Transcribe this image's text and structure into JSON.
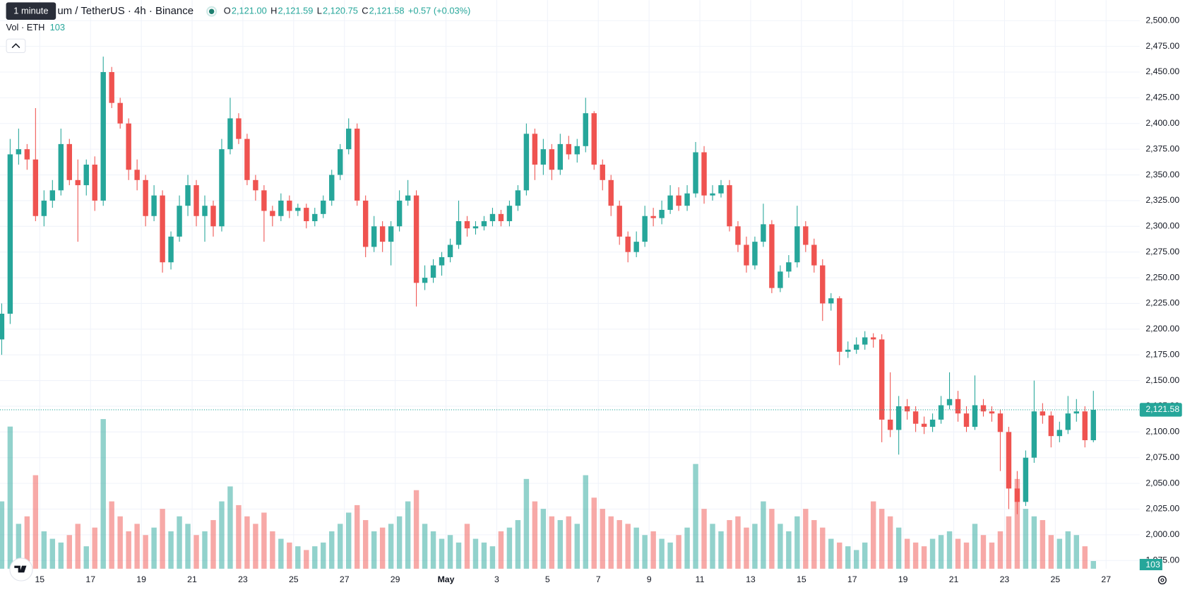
{
  "chart_data": {
    "type": "candlestick",
    "tooltip": "1 minute",
    "title": "um / TetherUS · 4h · Binance",
    "header_values": [
      {
        "key": "O",
        "text": "2,121.00"
      },
      {
        "key": "H",
        "text": "2,121.59"
      },
      {
        "key": "L",
        "text": "2,120.75"
      },
      {
        "key": "C",
        "text": "2,121.58"
      }
    ],
    "change": "+0.57 (+0.03%)",
    "volume_title": "Vol · ETH",
    "up_color": "#26a69a",
    "down_color": "#ef5350",
    "grid": true,
    "xlim": [
      -0.2,
      134.2
    ],
    "ylim": [
      1967,
      2520
    ],
    "volume_ylim": [
      0,
      7600
    ],
    "xticks": [
      {
        "value": 4.5,
        "label": "15"
      },
      {
        "value": 10.5,
        "label": "17"
      },
      {
        "value": 16.5,
        "label": "19"
      },
      {
        "value": 22.5,
        "label": "21"
      },
      {
        "value": 28.5,
        "label": "23"
      },
      {
        "value": 34.5,
        "label": "25"
      },
      {
        "value": 40.5,
        "label": "27"
      },
      {
        "value": 46.5,
        "label": "29"
      },
      {
        "value": 52.5,
        "label": "May"
      },
      {
        "value": 58.5,
        "label": "3"
      },
      {
        "value": 64.5,
        "label": "5"
      },
      {
        "value": 70.5,
        "label": "7"
      },
      {
        "value": 76.5,
        "label": "9"
      },
      {
        "value": 82.5,
        "label": "11"
      },
      {
        "value": 88.5,
        "label": "13"
      },
      {
        "value": 94.5,
        "label": "15"
      },
      {
        "value": 100.5,
        "label": "17"
      },
      {
        "value": 106.5,
        "label": "19"
      },
      {
        "value": 112.5,
        "label": "21"
      },
      {
        "value": 118.5,
        "label": "23"
      },
      {
        "value": 124.5,
        "label": "25"
      },
      {
        "value": 130.5,
        "label": "27"
      }
    ],
    "yticks": [
      {
        "value": 1975,
        "label": "1,975.00"
      },
      {
        "value": 2000,
        "label": "2,000.00"
      },
      {
        "value": 2025,
        "label": "2,025.00"
      },
      {
        "value": 2050,
        "label": "2,050.00"
      },
      {
        "value": 2075,
        "label": "2,075.00"
      },
      {
        "value": 2100,
        "label": "2,100.00"
      },
      {
        "value": 2125,
        "label": "2,125.00"
      },
      {
        "value": 2150,
        "label": "2,150.00"
      },
      {
        "value": 2175,
        "label": "2,175.00"
      },
      {
        "value": 2200,
        "label": "2,200.00"
      },
      {
        "value": 2225,
        "label": "2,225.00"
      },
      {
        "value": 2250,
        "label": "2,250.00"
      },
      {
        "value": 2275,
        "label": "2,275.00"
      },
      {
        "value": 2300,
        "label": "2,300.00"
      },
      {
        "value": 2325,
        "label": "2,325.00"
      },
      {
        "value": 2350,
        "label": "2,350.00"
      },
      {
        "value": 2375,
        "label": "2,375.00"
      },
      {
        "value": 2400,
        "label": "2,400.00"
      },
      {
        "value": 2425,
        "label": "2,425.00"
      },
      {
        "value": 2450,
        "label": "2,450.00"
      },
      {
        "value": 2475,
        "label": "2,475.00"
      },
      {
        "value": 2500,
        "label": "2,500.00"
      }
    ],
    "last_price": {
      "value": 2121.58,
      "label": "2,121.58"
    },
    "candles": [
      [
        2190,
        2225,
        2175,
        2215
      ],
      [
        2215,
        2385,
        2205,
        2370
      ],
      [
        2370,
        2395,
        2360,
        2375
      ],
      [
        2375,
        2380,
        2355,
        2365
      ],
      [
        2365,
        2415,
        2305,
        2310
      ],
      [
        2310,
        2335,
        2300,
        2325
      ],
      [
        2325,
        2345,
        2318,
        2335
      ],
      [
        2335,
        2395,
        2330,
        2380
      ],
      [
        2380,
        2385,
        2340,
        2345
      ],
      [
        2345,
        2365,
        2285,
        2340
      ],
      [
        2340,
        2365,
        2330,
        2360
      ],
      [
        2360,
        2368,
        2315,
        2325
      ],
      [
        2325,
        2465,
        2320,
        2450
      ],
      [
        2450,
        2455,
        2415,
        2420
      ],
      [
        2420,
        2425,
        2395,
        2400
      ],
      [
        2400,
        2405,
        2345,
        2355
      ],
      [
        2355,
        2365,
        2335,
        2345
      ],
      [
        2345,
        2350,
        2300,
        2310
      ],
      [
        2310,
        2340,
        2305,
        2330
      ],
      [
        2330,
        2335,
        2255,
        2265
      ],
      [
        2265,
        2295,
        2258,
        2290
      ],
      [
        2290,
        2330,
        2285,
        2320
      ],
      [
        2320,
        2350,
        2310,
        2340
      ],
      [
        2340,
        2345,
        2300,
        2310
      ],
      [
        2310,
        2330,
        2285,
        2320
      ],
      [
        2320,
        2325,
        2290,
        2300
      ],
      [
        2300,
        2385,
        2295,
        2375
      ],
      [
        2375,
        2425,
        2370,
        2405
      ],
      [
        2405,
        2410,
        2380,
        2385
      ],
      [
        2385,
        2390,
        2340,
        2345
      ],
      [
        2345,
        2350,
        2325,
        2335
      ],
      [
        2335,
        2340,
        2285,
        2315
      ],
      [
        2315,
        2320,
        2300,
        2310
      ],
      [
        2310,
        2332,
        2305,
        2325
      ],
      [
        2325,
        2330,
        2308,
        2315
      ],
      [
        2315,
        2322,
        2310,
        2318
      ],
      [
        2318,
        2322,
        2298,
        2305
      ],
      [
        2305,
        2318,
        2300,
        2312
      ],
      [
        2312,
        2330,
        2308,
        2325
      ],
      [
        2325,
        2355,
        2320,
        2350
      ],
      [
        2350,
        2380,
        2345,
        2375
      ],
      [
        2375,
        2405,
        2370,
        2395
      ],
      [
        2395,
        2400,
        2320,
        2325
      ],
      [
        2325,
        2330,
        2270,
        2280
      ],
      [
        2280,
        2310,
        2275,
        2300
      ],
      [
        2300,
        2305,
        2275,
        2285
      ],
      [
        2285,
        2305,
        2262,
        2300
      ],
      [
        2300,
        2335,
        2295,
        2325
      ],
      [
        2325,
        2345,
        2320,
        2330
      ],
      [
        2330,
        2335,
        2222,
        2245
      ],
      [
        2245,
        2262,
        2238,
        2250
      ],
      [
        2250,
        2268,
        2245,
        2262
      ],
      [
        2262,
        2275,
        2252,
        2270
      ],
      [
        2270,
        2288,
        2265,
        2282
      ],
      [
        2282,
        2325,
        2278,
        2305
      ],
      [
        2305,
        2310,
        2290,
        2298
      ],
      [
        2298,
        2305,
        2292,
        2300
      ],
      [
        2300,
        2310,
        2296,
        2305
      ],
      [
        2305,
        2318,
        2300,
        2312
      ],
      [
        2312,
        2316,
        2300,
        2305
      ],
      [
        2305,
        2325,
        2300,
        2320
      ],
      [
        2320,
        2340,
        2315,
        2335
      ],
      [
        2335,
        2400,
        2330,
        2390
      ],
      [
        2390,
        2395,
        2345,
        2360
      ],
      [
        2360,
        2385,
        2350,
        2375
      ],
      [
        2375,
        2380,
        2345,
        2355
      ],
      [
        2355,
        2390,
        2350,
        2380
      ],
      [
        2380,
        2388,
        2365,
        2370
      ],
      [
        2370,
        2385,
        2362,
        2378
      ],
      [
        2378,
        2425,
        2372,
        2410
      ],
      [
        2410,
        2412,
        2355,
        2360
      ],
      [
        2360,
        2365,
        2335,
        2345
      ],
      [
        2345,
        2350,
        2310,
        2320
      ],
      [
        2320,
        2325,
        2282,
        2290
      ],
      [
        2290,
        2295,
        2265,
        2275
      ],
      [
        2275,
        2295,
        2270,
        2285
      ],
      [
        2285,
        2320,
        2280,
        2310
      ],
      [
        2310,
        2318,
        2300,
        2308
      ],
      [
        2308,
        2325,
        2302,
        2316
      ],
      [
        2316,
        2340,
        2312,
        2330
      ],
      [
        2330,
        2338,
        2315,
        2320
      ],
      [
        2320,
        2340,
        2315,
        2332
      ],
      [
        2332,
        2382,
        2328,
        2372
      ],
      [
        2372,
        2378,
        2322,
        2330
      ],
      [
        2330,
        2340,
        2325,
        2332
      ],
      [
        2332,
        2345,
        2328,
        2340
      ],
      [
        2340,
        2345,
        2295,
        2300
      ],
      [
        2300,
        2305,
        2275,
        2282
      ],
      [
        2282,
        2290,
        2255,
        2262
      ],
      [
        2262,
        2290,
        2258,
        2285
      ],
      [
        2285,
        2322,
        2280,
        2302
      ],
      [
        2302,
        2306,
        2235,
        2240
      ],
      [
        2240,
        2262,
        2236,
        2256
      ],
      [
        2256,
        2272,
        2250,
        2265
      ],
      [
        2265,
        2320,
        2260,
        2300
      ],
      [
        2300,
        2305,
        2275,
        2282
      ],
      [
        2282,
        2288,
        2255,
        2262
      ],
      [
        2262,
        2268,
        2208,
        2225
      ],
      [
        2225,
        2235,
        2218,
        2230
      ],
      [
        2230,
        2232,
        2165,
        2178
      ],
      [
        2178,
        2188,
        2172,
        2180
      ],
      [
        2180,
        2192,
        2176,
        2185
      ],
      [
        2185,
        2198,
        2180,
        2192
      ],
      [
        2192,
        2196,
        2182,
        2190
      ],
      [
        2190,
        2195,
        2090,
        2112
      ],
      [
        2112,
        2158,
        2095,
        2102
      ],
      [
        2102,
        2135,
        2078,
        2125
      ],
      [
        2125,
        2132,
        2112,
        2120
      ],
      [
        2120,
        2125,
        2100,
        2108
      ],
      [
        2108,
        2115,
        2098,
        2105
      ],
      [
        2105,
        2118,
        2100,
        2112
      ],
      [
        2112,
        2135,
        2108,
        2126
      ],
      [
        2126,
        2158,
        2122,
        2132
      ],
      [
        2132,
        2140,
        2110,
        2118
      ],
      [
        2118,
        2125,
        2100,
        2105
      ],
      [
        2105,
        2155,
        2102,
        2126
      ],
      [
        2126,
        2132,
        2115,
        2120
      ],
      [
        2120,
        2125,
        2110,
        2118
      ],
      [
        2118,
        2122,
        2062,
        2100
      ],
      [
        2100,
        2105,
        2025,
        2045
      ],
      [
        2045,
        2062,
        2020,
        2032
      ],
      [
        2032,
        2082,
        2028,
        2075
      ],
      [
        2075,
        2150,
        2070,
        2120
      ],
      [
        2120,
        2128,
        2108,
        2116
      ],
      [
        2116,
        2120,
        2085,
        2096
      ],
      [
        2096,
        2110,
        2090,
        2102
      ],
      [
        2102,
        2135,
        2098,
        2118
      ],
      [
        2118,
        2132,
        2110,
        2120
      ],
      [
        2120,
        2125,
        2085,
        2092
      ],
      [
        2092,
        2140,
        2090,
        2121.58
      ]
    ],
    "volumes": [
      900,
      1900,
      600,
      700,
      1250,
      500,
      400,
      350,
      450,
      600,
      300,
      550,
      2000,
      900,
      700,
      500,
      600,
      450,
      550,
      800,
      500,
      700,
      600,
      450,
      500,
      650,
      900,
      1100,
      850,
      700,
      600,
      750,
      500,
      400,
      350,
      300,
      250,
      300,
      350,
      500,
      600,
      750,
      850,
      650,
      500,
      550,
      600,
      700,
      900,
      1050,
      600,
      500,
      400,
      450,
      350,
      600,
      400,
      350,
      300,
      500,
      550,
      650,
      1200,
      900,
      800,
      700,
      650,
      700,
      600,
      1250,
      950,
      800,
      700,
      650,
      600,
      550,
      450,
      500,
      400,
      350,
      450,
      550,
      1400,
      800,
      600,
      500,
      650,
      700,
      550,
      600,
      900,
      800,
      600,
      500,
      700,
      800,
      650,
      550,
      400,
      350,
      300,
      250,
      350,
      900,
      800,
      700,
      550,
      400,
      350,
      300,
      400,
      450,
      500,
      400,
      350,
      600,
      450,
      350,
      500,
      700,
      1200,
      800,
      700,
      650,
      450,
      400,
      500,
      450,
      300,
      103
    ]
  }
}
